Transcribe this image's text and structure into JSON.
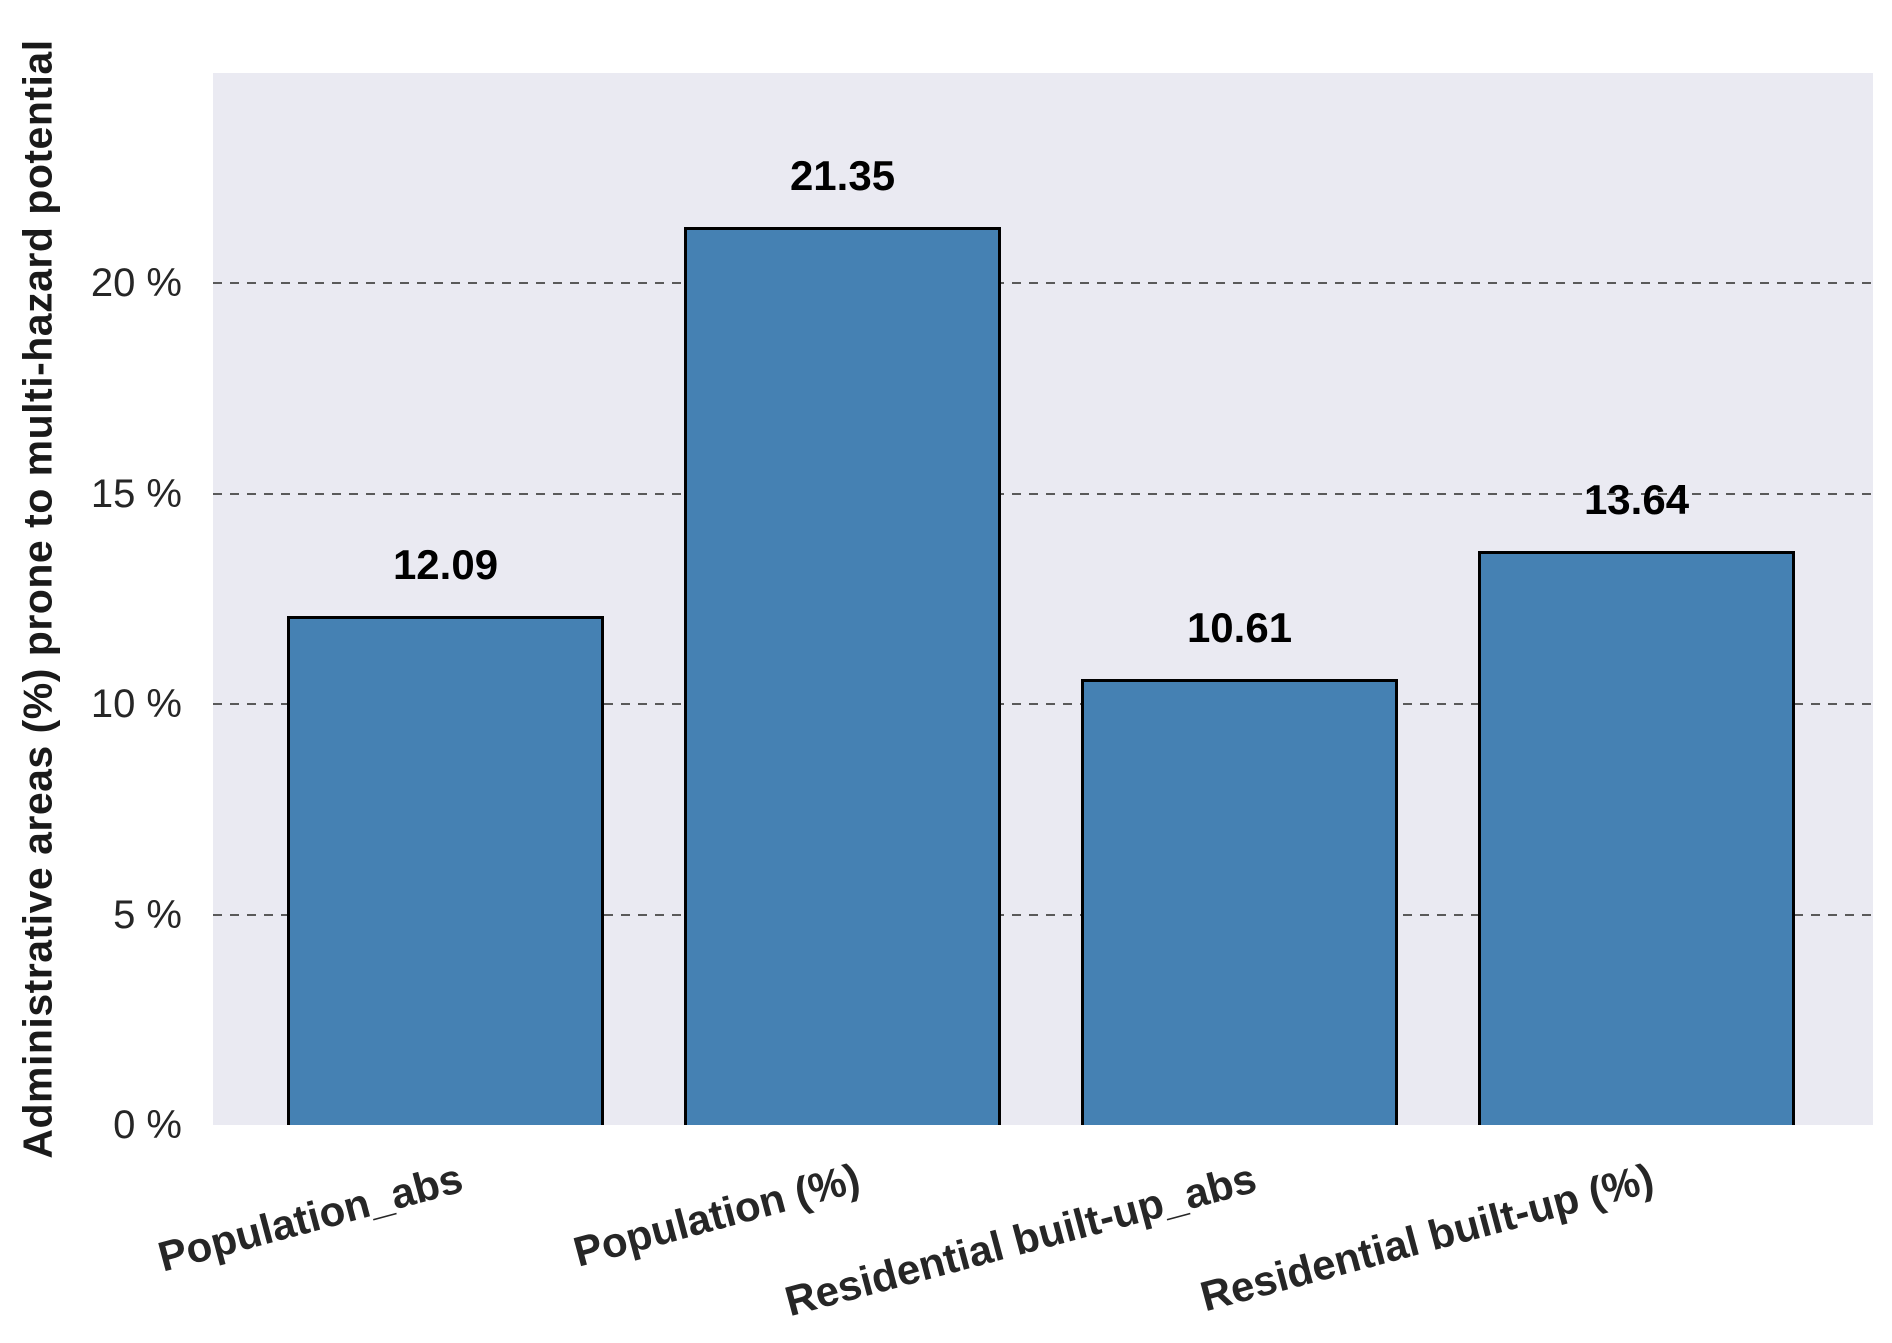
{
  "figure": {
    "background": "#ffffff"
  },
  "chart_data": {
    "type": "bar",
    "title": "",
    "categories": [
      "Population_abs",
      "Population (%)",
      "Residential built-up_abs",
      "Residential built-up (%)"
    ],
    "values": [
      12.09,
      21.35,
      10.61,
      13.64
    ],
    "bar_value_labels": [
      "12.09",
      "21.35",
      "10.61",
      "13.64"
    ],
    "xlabel": "",
    "ylabel": "Administrative areas (%) prone to multi-hazard potential",
    "ylim": [
      0,
      25
    ],
    "yticks": [
      {
        "value": 0,
        "label": "0 %"
      },
      {
        "value": 5,
        "label": "5 %"
      },
      {
        "value": 10,
        "label": "10 %"
      },
      {
        "value": 15,
        "label": "15 %"
      },
      {
        "value": 20,
        "label": "20 %"
      }
    ],
    "x_tick_rotation_deg": 15,
    "grid": "horizontal dashed lines at y ticks",
    "legend": "none",
    "colors": {
      "bar_fill": "#4581B3",
      "bar_edge": "#000000",
      "plot_background": "#EAEAF2",
      "gridline": "#5A5A5A",
      "tick_label": "#262626",
      "value_label": "#000000",
      "axis_label": "#1A1A1A"
    }
  }
}
